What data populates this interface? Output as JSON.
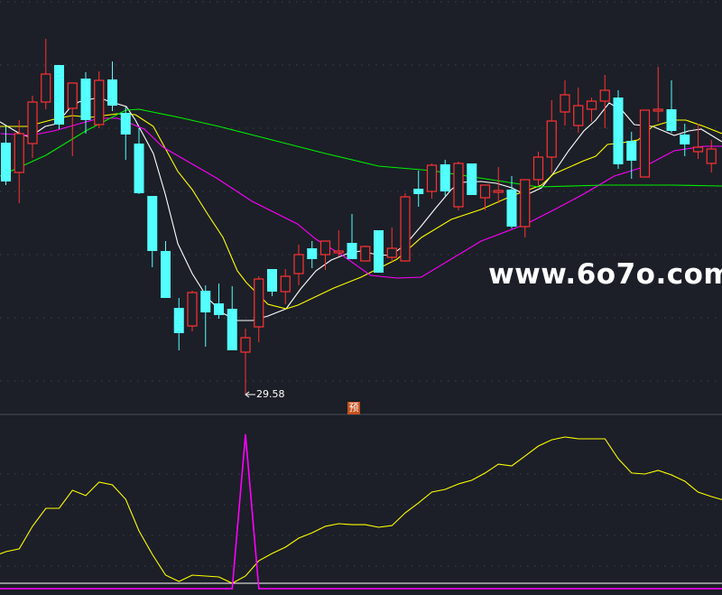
{
  "colors": {
    "background": "#1c1f27",
    "up": "#ff3232",
    "down": "#54ffff",
    "ma5": "#ffffff",
    "ma10": "#ffff00",
    "ma20": "#ff00ff",
    "ma60": "#00ee00",
    "grid": "#3c414c",
    "separator": "#3a3f4a",
    "indicator_line": "#ffff00",
    "indicator_signal": "#ff00ff",
    "indicator_baseline": "#ffffff"
  },
  "watermark": "www.6o7o.com",
  "low_marker": {
    "label": "29.58",
    "value": 29.58,
    "bar": 18
  },
  "pre_badge": {
    "label": "预"
  },
  "chart_data": [
    {
      "type": "candlestick",
      "title": "",
      "price_range": [
        29.58,
        73.08
      ],
      "price_gridlines": [
        73.08,
        66.08,
        59.08,
        52.08,
        45.08,
        38.08,
        31.08
      ],
      "candles": [
        [
          57.48,
          59.28,
          52.78,
          53.18
        ],
        [
          54.18,
          59.98,
          50.78,
          58.48
        ],
        [
          57.38,
          62.68,
          55.78,
          61.98
        ],
        [
          61.98,
          68.98,
          61.18,
          65.08
        ],
        [
          66.08,
          66.08,
          58.98,
          59.48
        ],
        [
          61.28,
          64.08,
          55.98,
          64.08
        ],
        [
          64.58,
          65.28,
          58.48,
          59.98
        ],
        [
          59.48,
          65.38,
          59.08,
          64.38
        ],
        [
          64.48,
          66.48,
          60.98,
          61.58
        ],
        [
          60.78,
          61.48,
          55.58,
          58.38
        ],
        [
          57.38,
          59.08,
          51.78,
          51.88
        ],
        [
          51.58,
          51.58,
          43.68,
          45.48
        ],
        [
          45.48,
          46.58,
          40.28,
          40.28
        ],
        [
          39.18,
          40.28,
          34.48,
          36.38
        ],
        [
          37.18,
          41.08,
          36.58,
          40.88
        ],
        [
          41.08,
          41.68,
          34.88,
          38.68
        ],
        [
          39.68,
          41.88,
          37.98,
          38.38
        ],
        [
          39.08,
          41.58,
          34.48,
          34.48
        ],
        [
          34.28,
          36.88,
          29.58,
          35.88
        ],
        [
          37.08,
          42.68,
          35.38,
          42.38
        ],
        [
          43.48,
          43.48,
          40.48,
          40.98
        ],
        [
          40.98,
          43.48,
          39.58,
          42.68
        ],
        [
          42.98,
          46.18,
          41.68,
          45.08
        ],
        [
          45.78,
          46.58,
          43.58,
          44.58
        ],
        [
          45.08,
          46.58,
          43.38,
          46.58
        ],
        [
          45.28,
          47.78,
          44.88,
          45.48
        ],
        [
          46.38,
          49.58,
          44.58,
          44.58
        ],
        [
          44.38,
          46.08,
          44.38,
          45.98
        ],
        [
          47.78,
          47.78,
          43.08,
          43.08
        ],
        [
          44.78,
          48.08,
          44.28,
          45.78
        ],
        [
          44.38,
          51.88,
          44.38,
          51.48
        ],
        [
          52.38,
          54.38,
          50.38,
          51.78
        ],
        [
          52.08,
          55.18,
          51.28,
          54.98
        ],
        [
          55.08,
          55.58,
          51.58,
          52.08
        ],
        [
          50.38,
          55.38,
          49.98,
          55.18
        ],
        [
          55.18,
          55.18,
          51.68,
          51.68
        ],
        [
          51.38,
          52.78,
          49.98,
          52.78
        ],
        [
          51.98,
          54.78,
          50.78,
          52.18
        ],
        [
          52.28,
          53.78,
          47.98,
          48.18
        ],
        [
          48.18,
          53.38,
          46.98,
          53.38
        ],
        [
          53.38,
          56.48,
          52.78,
          55.88
        ],
        [
          55.88,
          62.18,
          54.18,
          59.88
        ],
        [
          60.88,
          64.38,
          59.38,
          62.78
        ],
        [
          59.38,
          63.58,
          58.58,
          61.58
        ],
        [
          61.18,
          62.48,
          59.78,
          62.08
        ],
        [
          62.08,
          64.98,
          59.08,
          63.28
        ],
        [
          62.48,
          63.28,
          54.58,
          55.08
        ],
        [
          57.68,
          58.68,
          53.48,
          55.48
        ],
        [
          53.68,
          61.08,
          53.68,
          61.08
        ],
        [
          60.98,
          65.88,
          59.78,
          61.18
        ],
        [
          61.18,
          64.38,
          58.58,
          58.78
        ],
        [
          58.38,
          59.58,
          55.98,
          57.28
        ],
        [
          56.48,
          59.58,
          55.68,
          56.98
        ],
        [
          55.18,
          57.78,
          54.18,
          56.78
        ]
      ],
      "candle_fields": [
        "open",
        "high",
        "low",
        "close"
      ],
      "moving_averages": [
        {
          "name": "MA5",
          "color_key": "ma5",
          "points": [
            [
              -0.44,
              59.78
            ],
            [
              0.92,
              58.58
            ],
            [
              1.8,
              58.08
            ],
            [
              2.27,
              58.58
            ],
            [
              2.95,
              59.28
            ],
            [
              3.83,
              59.58
            ],
            [
              4.78,
              61.28
            ],
            [
              5.46,
              61.98
            ],
            [
              6.34,
              62.28
            ],
            [
              7.02,
              62.48
            ],
            [
              7.69,
              62.08
            ],
            [
              8.37,
              61.78
            ],
            [
              9.05,
              61.48
            ],
            [
              9.73,
              59.98
            ],
            [
              11.08,
              56.28
            ],
            [
              11.97,
              51.78
            ],
            [
              12.92,
              46.28
            ],
            [
              14.0,
              42.98
            ],
            [
              15.15,
              40.28
            ],
            [
              16.31,
              38.58
            ],
            [
              17.39,
              37.78
            ],
            [
              18.54,
              37.78
            ],
            [
              19.69,
              38.28
            ],
            [
              21.05,
              39.08
            ],
            [
              22.14,
              41.28
            ],
            [
              23.29,
              43.28
            ],
            [
              24.44,
              44.48
            ],
            [
              25.8,
              45.28
            ],
            [
              26.68,
              45.48
            ],
            [
              27.83,
              45.08
            ],
            [
              28.92,
              44.98
            ],
            [
              30.07,
              46.28
            ],
            [
              31.22,
              48.28
            ],
            [
              32.31,
              50.28
            ],
            [
              33.46,
              52.28
            ],
            [
              34.14,
              53.08
            ],
            [
              35.69,
              53.18
            ],
            [
              36.85,
              52.98
            ],
            [
              38.0,
              52.48
            ],
            [
              39.08,
              51.68
            ],
            [
              40.24,
              52.48
            ],
            [
              41.12,
              54.08
            ],
            [
              42.27,
              56.58
            ],
            [
              43.42,
              58.78
            ],
            [
              44.31,
              59.98
            ],
            [
              45.32,
              61.88
            ],
            [
              46.34,
              60.98
            ],
            [
              47.2,
              59.48
            ],
            [
              48.58,
              59.28
            ],
            [
              50.2,
              58.28
            ],
            [
              51.29,
              58.78
            ],
            [
              52.24,
              58.98
            ],
            [
              53.8,
              57.58
            ]
          ]
        },
        {
          "name": "MA10",
          "color_key": "ma10",
          "points": [
            [
              -0.44,
              59.28
            ],
            [
              1.59,
              59.28
            ],
            [
              3.63,
              60.08
            ],
            [
              4.98,
              60.48
            ],
            [
              6.34,
              60.28
            ],
            [
              8.37,
              60.68
            ],
            [
              9.73,
              60.58
            ],
            [
              11.08,
              59.28
            ],
            [
              12.92,
              54.28
            ],
            [
              14.0,
              52.28
            ],
            [
              15.15,
              49.58
            ],
            [
              16.31,
              46.98
            ],
            [
              17.39,
              43.28
            ],
            [
              18.07,
              41.98
            ],
            [
              19.69,
              39.58
            ],
            [
              21.05,
              39.08
            ],
            [
              21.93,
              39.48
            ],
            [
              24.64,
              41.38
            ],
            [
              26.68,
              42.58
            ],
            [
              29.39,
              44.58
            ],
            [
              31.22,
              46.98
            ],
            [
              33.46,
              48.98
            ],
            [
              35.69,
              50.08
            ],
            [
              38.0,
              51.58
            ],
            [
              40.24,
              52.78
            ],
            [
              41.12,
              53.98
            ],
            [
              43.42,
              55.48
            ],
            [
              44.31,
              55.98
            ],
            [
              45.19,
              57.28
            ],
            [
              46.34,
              57.48
            ],
            [
              47.5,
              57.78
            ],
            [
              48.58,
              59.28
            ],
            [
              50.2,
              59.98
            ],
            [
              51.08,
              59.98
            ],
            [
              52.44,
              59.28
            ],
            [
              53.8,
              58.48
            ]
          ]
        },
        {
          "name": "MA20",
          "color_key": "ma20",
          "points": [
            [
              -0.4,
              58.48
            ],
            [
              1.9,
              58.28
            ],
            [
              3.6,
              58.78
            ],
            [
              7,
              60.18
            ],
            [
              8.4,
              60.18
            ],
            [
              10.4,
              58.98
            ],
            [
              11.8,
              56.98
            ],
            [
              13.8,
              55.28
            ],
            [
              15.8,
              53.58
            ],
            [
              18.5,
              50.98
            ],
            [
              21.9,
              48.48
            ],
            [
              23.3,
              46.78
            ],
            [
              25.3,
              44.98
            ],
            [
              27.4,
              42.78
            ],
            [
              29.4,
              42.48
            ],
            [
              31.2,
              42.58
            ],
            [
              35.7,
              46.58
            ],
            [
              39.1,
              48.48
            ],
            [
              41.1,
              49.98
            ],
            [
              43.4,
              51.78
            ],
            [
              45.7,
              53.78
            ],
            [
              47.9,
              54.78
            ],
            [
              50.2,
              56.58
            ],
            [
              52.4,
              57.08
            ],
            [
              53.8,
              57.08
            ]
          ]
        },
        {
          "name": "MA60",
          "color_key": "ma60",
          "points": [
            [
              -0.44,
              53.78
            ],
            [
              3,
              56.08
            ],
            [
              6,
              58.78
            ],
            [
              9,
              61.08
            ],
            [
              10,
              61.18
            ],
            [
              13,
              60.28
            ],
            [
              16,
              59.28
            ],
            [
              20,
              57.78
            ],
            [
              24,
              56.28
            ],
            [
              28,
              54.88
            ],
            [
              32,
              54.38
            ],
            [
              36,
              53.48
            ],
            [
              40,
              52.58
            ],
            [
              45,
              52.78
            ],
            [
              50,
              52.78
            ],
            [
              53.8,
              52.68
            ]
          ]
        }
      ]
    },
    {
      "type": "line",
      "title": "",
      "ylim": [
        0,
        100
      ],
      "gridlines": [
        10,
        30,
        50,
        70
      ],
      "series": [
        {
          "name": "indicator",
          "color_key": "indicator_line",
          "values": [
            20.6,
            22.4,
            37.1,
            48.8,
            48.8,
            60.6,
            57.1,
            65.9,
            64.1,
            54.7,
            34.1,
            18.8,
            5.3,
            1.2,
            5.3,
            4.7,
            4.1,
            0,
            4.7,
            14.7,
            19.4,
            23.5,
            29.4,
            32.9,
            37.1,
            38.8,
            38.2,
            38.2,
            36.5,
            37.6,
            45.9,
            52.4,
            59.4,
            61.2,
            64.7,
            67.1,
            71.8,
            77.6,
            76.5,
            82.9,
            89.4,
            93.5,
            95.3,
            94.1,
            94.1,
            94.1,
            81.2,
            71.8,
            71.2,
            73.5,
            70.6,
            66.5,
            59.4,
            56.5
          ]
        },
        {
          "name": "signal",
          "color_key": "indicator_signal",
          "values": [
            0,
            0,
            0,
            0,
            0,
            0,
            0,
            0,
            0,
            0,
            0,
            0,
            0,
            0,
            0,
            0,
            0,
            0,
            100,
            0,
            0,
            0,
            0,
            0,
            0,
            0,
            0,
            0,
            0,
            0,
            0,
            0,
            0,
            0,
            0,
            0,
            0,
            0,
            0,
            0,
            0,
            0,
            0,
            0,
            0,
            0,
            0,
            0,
            0,
            0,
            0,
            0,
            0,
            0
          ]
        }
      ]
    }
  ]
}
